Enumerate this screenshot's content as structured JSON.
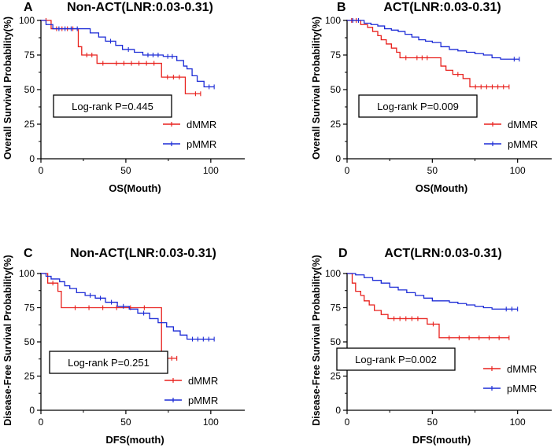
{
  "figure": {
    "colors": {
      "dmmr": "#e8211d",
      "pmmr": "#1c2bd6",
      "axis": "#000000"
    }
  },
  "chart_data": [
    {
      "type": "line",
      "panel_letter": "A",
      "title": "Non-ACT(LNR:0.03-0.31)",
      "xlabel": "OS(Mouth)",
      "ylabel": "Overall Survival Probability(%)",
      "xlim": [
        0,
        120
      ],
      "ylim": [
        0,
        100
      ],
      "xticks": [
        "0",
        "50",
        "100"
      ],
      "yticks": [
        "0",
        "25",
        "50",
        "75",
        "100"
      ],
      "annotation": "Log-rank P=0.445",
      "legend": [
        "dMMR",
        "pMMR"
      ],
      "legend_position": "bottom-right",
      "series": [
        {
          "name": "dMMR",
          "x": [
            0,
            6,
            22,
            24,
            33,
            40,
            71,
            85,
            88,
            94
          ],
          "y": [
            100,
            94,
            81,
            75,
            69,
            69,
            59,
            47,
            47,
            47
          ]
        },
        {
          "name": "pMMR",
          "x": [
            0,
            3,
            7,
            25,
            29,
            34,
            38,
            44,
            48,
            55,
            60,
            72,
            80,
            84,
            86,
            89,
            92,
            96,
            102
          ],
          "y": [
            100,
            97,
            94,
            94,
            91,
            88,
            85,
            82,
            79,
            77,
            75,
            74,
            71,
            67,
            65,
            60,
            56,
            52,
            52
          ]
        }
      ]
    },
    {
      "type": "line",
      "panel_letter": "B",
      "title": "ACT(LNR:0.03-0.31)",
      "xlabel": "OS(Mouth)",
      "ylabel": "Overall Survival Probability(%)",
      "xlim": [
        0,
        120
      ],
      "ylim": [
        0,
        100
      ],
      "xticks": [
        "0",
        "50",
        "100"
      ],
      "yticks": [
        "0",
        "25",
        "50",
        "75",
        "100"
      ],
      "annotation": "Log-rank P=0.009",
      "legend": [
        "dMMR",
        "pMMR"
      ],
      "legend_position": "bottom-right",
      "series": [
        {
          "name": "dMMR",
          "x": [
            0,
            8,
            12,
            15,
            18,
            20,
            23,
            26,
            29,
            31,
            38,
            50,
            55,
            58,
            62,
            68,
            72,
            95
          ],
          "y": [
            100,
            97,
            95,
            92,
            89,
            86,
            83,
            80,
            77,
            73,
            73,
            73,
            67,
            64,
            61,
            58,
            52,
            52
          ]
        },
        {
          "name": "pMMR",
          "x": [
            0,
            10,
            14,
            18,
            22,
            26,
            30,
            34,
            38,
            42,
            46,
            50,
            55,
            60,
            65,
            70,
            75,
            80,
            85,
            90,
            95,
            101
          ],
          "y": [
            100,
            98,
            97,
            96,
            94,
            93,
            92,
            90,
            88,
            86,
            85,
            84,
            81,
            79,
            78,
            77,
            76,
            75,
            73,
            72,
            72,
            72
          ]
        }
      ]
    },
    {
      "type": "line",
      "panel_letter": "C",
      "title": "Non-ACT(LNR:0.03-0.31)",
      "xlabel": "DFS(mouth)",
      "ylabel": "Disease-Free Survival Probability(%)",
      "xlim": [
        0,
        120
      ],
      "ylim": [
        0,
        100
      ],
      "xticks": [
        "0",
        "50",
        "100"
      ],
      "yticks": [
        "0",
        "25",
        "50",
        "75",
        "100"
      ],
      "annotation": "Log-rank P=0.251",
      "legend": [
        "dMMR",
        "pMMR"
      ],
      "legend_position": "bottom-right",
      "series": [
        {
          "name": "dMMR",
          "x": [
            0,
            4,
            10,
            12,
            69,
            71,
            80
          ],
          "y": [
            100,
            93,
            87,
            75,
            75,
            38,
            38
          ]
        },
        {
          "name": "pMMR",
          "x": [
            0,
            3,
            6,
            11,
            14,
            17,
            21,
            26,
            32,
            38,
            45,
            52,
            57,
            64,
            69,
            74,
            78,
            82,
            86,
            102
          ],
          "y": [
            100,
            98,
            96,
            94,
            91,
            89,
            86,
            84,
            82,
            79,
            76,
            74,
            71,
            67,
            64,
            61,
            58,
            55,
            52,
            52
          ]
        }
      ]
    },
    {
      "type": "line",
      "panel_letter": "D",
      "title": "ACT(LRN:0.03-0.31)",
      "xlabel": "DFS(mouth)",
      "ylabel": "Disease-Free Survival Probability(%)",
      "xlim": [
        0,
        120
      ],
      "ylim": [
        0,
        100
      ],
      "xticks": [
        "0",
        "50",
        "100"
      ],
      "yticks": [
        "0",
        "25",
        "50",
        "75",
        "100"
      ],
      "annotation": "Log-rank P=0.002",
      "legend": [
        "dMMR",
        "pMMR"
      ],
      "legend_position": "bottom-right",
      "series": [
        {
          "name": "dMMR",
          "x": [
            0,
            3,
            5,
            8,
            10,
            13,
            16,
            20,
            24,
            45,
            47,
            54,
            95
          ],
          "y": [
            100,
            93,
            87,
            84,
            80,
            77,
            73,
            70,
            67,
            67,
            63,
            53,
            53
          ]
        },
        {
          "name": "pMMR",
          "x": [
            0,
            5,
            10,
            15,
            20,
            25,
            30,
            35,
            40,
            45,
            50,
            55,
            60,
            65,
            70,
            75,
            80,
            85,
            90,
            100
          ],
          "y": [
            100,
            99,
            97,
            95,
            93,
            90,
            88,
            86,
            84,
            82,
            80,
            80,
            79,
            78,
            77,
            76,
            75,
            74,
            74,
            74
          ]
        }
      ]
    }
  ]
}
